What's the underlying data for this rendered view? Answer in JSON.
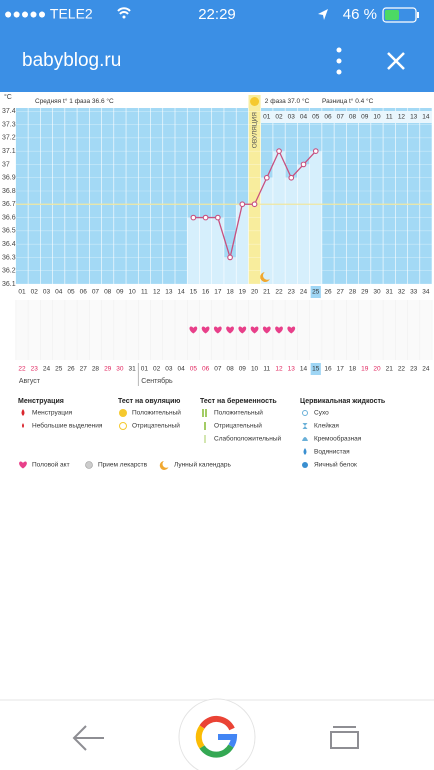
{
  "status_bar": {
    "carrier": "●●●●● TELE2",
    "time": "22:29",
    "battery": "46 %"
  },
  "browser": {
    "url": "babyblog.ru"
  },
  "chart": {
    "type": "bar",
    "unit": "°C",
    "phase1": "Средняя t° 1 фаза 36.6 °C",
    "phase2": "2 фаза 37.0 °C",
    "difference": "Разница t° 0.4 °C",
    "ovulation_label": "ОВУЛЯЦИЯ",
    "days": [
      "01",
      "02",
      "03",
      "04",
      "05",
      "06",
      "07",
      "08",
      "09",
      "10",
      "11",
      "12",
      "13",
      "14",
      "15",
      "16",
      "17",
      "18",
      "19",
      "20",
      "21",
      "22",
      "23",
      "24",
      "25",
      "26",
      "27",
      "28",
      "29",
      "30",
      "31",
      "32",
      "33",
      "34"
    ],
    "phase2_days": [
      "01",
      "02",
      "03",
      "04",
      "05",
      "06",
      "07",
      "08",
      "09",
      "10",
      "11",
      "12",
      "13",
      "14"
    ],
    "values": [
      null,
      null,
      null,
      null,
      null,
      null,
      null,
      null,
      null,
      null,
      null,
      null,
      null,
      null,
      36.6,
      36.6,
      36.6,
      36.3,
      36.7,
      36.7,
      36.9,
      37.1,
      36.9,
      37.0,
      37.1,
      null,
      null,
      null,
      null,
      null,
      null,
      null,
      null,
      null
    ],
    "ylim": [
      36.1,
      37.5
    ],
    "yticks": [
      36.1,
      36.2,
      36.3,
      36.4,
      36.5,
      36.6,
      36.7,
      36.8,
      36.9,
      37,
      37.1,
      37.2,
      37.3,
      37.4
    ],
    "coverline": 36.7,
    "ovulation_day": 20,
    "today": 25,
    "intercourse": [
      15,
      16,
      17,
      18,
      19,
      20,
      21,
      22,
      23
    ],
    "dates": [
      "22",
      "23",
      "24",
      "25",
      "26",
      "27",
      "28",
      "29",
      "30",
      "31",
      "01",
      "02",
      "03",
      "04",
      "05",
      "06",
      "07",
      "08",
      "09",
      "10",
      "11",
      "12",
      "13",
      "14",
      "15",
      "16",
      "17",
      "18",
      "19",
      "20",
      "21",
      "22",
      "23",
      "24"
    ],
    "date_colors": [
      "#e0245e",
      "#e0245e",
      "#333",
      "#333",
      "#333",
      "#333",
      "#333",
      "#e0245e",
      "#e0245e",
      "#333",
      "#333",
      "#333",
      "#333",
      "#333",
      "#e0245e",
      "#e0245e",
      "#333",
      "#333",
      "#333",
      "#333",
      "#333",
      "#e0245e",
      "#e0245e",
      "#333",
      "#333",
      "#333",
      "#333",
      "#333",
      "#e0245e",
      "#e0245e",
      "#333",
      "#333",
      "#333",
      "#333"
    ],
    "months": [
      "Август",
      "Сентябрь"
    ]
  },
  "legend": {
    "groups": [
      {
        "title": "Менструация",
        "items": [
          "Менструация",
          "Небольшие выделения"
        ]
      },
      {
        "title": "Тест на овуляцию",
        "items": [
          "Положительный",
          "Отрицательный"
        ]
      },
      {
        "title": "Тест на беременность",
        "items": [
          "Положительный",
          "Отрицательный",
          "Слабоположительный"
        ]
      },
      {
        "title": "Цервикальная жидкость",
        "items": [
          "Сухо",
          "Клейкая",
          "Кремообразная",
          "Водянистая",
          "Яичный белок"
        ]
      }
    ],
    "other": [
      "Половой акт",
      "Прием лекарств",
      "Лунный календарь"
    ]
  }
}
